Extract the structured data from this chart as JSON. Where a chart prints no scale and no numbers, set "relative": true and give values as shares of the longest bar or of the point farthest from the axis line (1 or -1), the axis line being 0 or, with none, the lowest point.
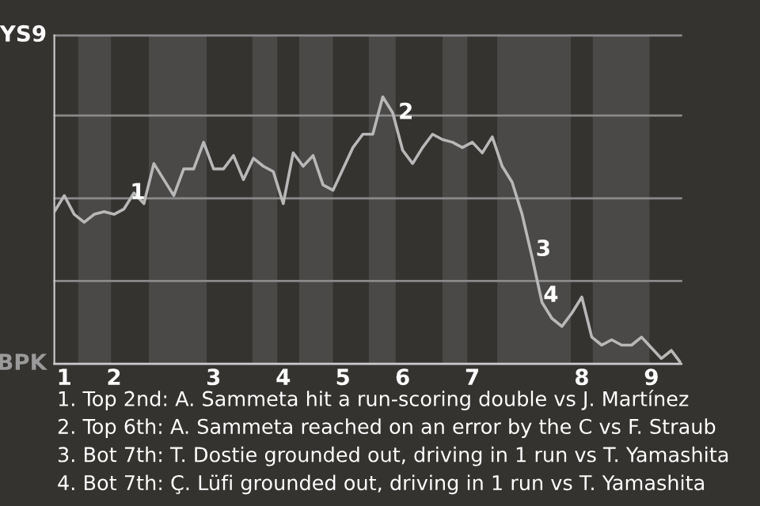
{
  "chart_data": {
    "type": "line",
    "relative": true,
    "categories": [
      null,
      "1",
      null,
      null,
      null,
      null,
      "2",
      null,
      null,
      null,
      null,
      null,
      null,
      null,
      null,
      null,
      "3",
      null,
      null,
      null,
      null,
      null,
      null,
      "4",
      null,
      null,
      null,
      null,
      null,
      "5",
      null,
      null,
      null,
      null,
      null,
      "6",
      null,
      null,
      null,
      null,
      null,
      null,
      "7",
      null,
      null,
      null,
      null,
      null,
      null,
      null,
      null,
      null,
      null,
      "8",
      null,
      null,
      null,
      null,
      null,
      null,
      "9",
      null,
      null,
      null
    ],
    "series": [
      {
        "color": "#b8b8b8",
        "values": [
          0.57,
          0.63,
          0.56,
          0.53,
          0.56,
          0.57,
          0.56,
          0.58,
          0.64,
          0.6,
          0.75,
          0.69,
          0.63,
          0.73,
          0.73,
          0.83,
          0.73,
          0.73,
          0.78,
          0.69,
          0.77,
          0.74,
          0.72,
          0.6,
          0.79,
          0.74,
          0.78,
          0.67,
          0.65,
          0.73,
          0.81,
          0.86,
          0.86,
          1,
          0.94,
          0.8,
          0.75,
          0.81,
          0.86,
          0.84,
          0.83,
          0.81,
          0.83,
          0.79,
          0.85,
          0.74,
          0.68,
          0.56,
          0.4,
          0.23,
          0.17,
          0.14,
          0.19,
          0.25,
          0.1,
          0.07,
          0.09,
          0.07,
          0.07,
          0.1,
          0.06,
          0.02,
          0.05,
          0
        ]
      }
    ],
    "ref_lines": [
      {
        "axis": "y",
        "value": 0,
        "label": "BPK",
        "color": "#c8c8c8"
      },
      {
        "axis": "y",
        "value": 0.31,
        "color": "#8a8a8a"
      },
      {
        "axis": "y",
        "value": 0.62,
        "color": "#8a8a8a"
      },
      {
        "axis": "y",
        "value": 0.93,
        "color": "#8a8a8a"
      },
      {
        "axis": "y",
        "value": 1.23,
        "label": "YS9",
        "color": "#8a8a8a"
      }
    ],
    "annotations": [
      {
        "text": "2",
        "y": 0.94
      },
      "1",
      "3",
      "4",
      "1. Top 2nd: A. Sammeta hit a run-scoring double vs J. Martínez",
      "2. Top 6th: A. Sammeta reached on an error by the C vs F. Straub",
      "3. Bot 7th: T. Dostie grounded out, driving in 1 run vs T. Yamashita",
      "4. Bot 7th: Ç. Lüfi grounded out, driving in 1 run vs T. Yamashita"
    ]
  }
}
